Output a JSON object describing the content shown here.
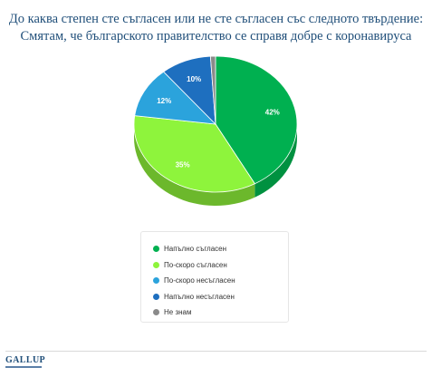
{
  "title": {
    "line1": "До каква степен сте съгласен или не сте съгласен със следното твърдение:",
    "line2": "Смятам, че българското правителство се справя добре с коронавируса"
  },
  "chart_data": {
    "type": "pie",
    "categories": [
      "Напълно съгласен",
      "По-скоро съгласен",
      "По-скоро несъгласен",
      "Напълно несъгласен",
      "Не знам"
    ],
    "values": [
      42,
      35,
      12,
      10,
      1
    ],
    "data_labels": [
      "42%",
      "35%",
      "12%",
      "10%",
      ""
    ],
    "colors": [
      "#00b050",
      "#8ef43c",
      "#2ba3dc",
      "#1e6fbf",
      "#8a8a8a"
    ],
    "side_colors": [
      "#009140",
      "#6cb82c",
      "#1f82b2",
      "#165a9c",
      "#666666"
    ],
    "legend_position": "bottom-center",
    "style": "3d"
  },
  "logo_text": "GALLUP"
}
